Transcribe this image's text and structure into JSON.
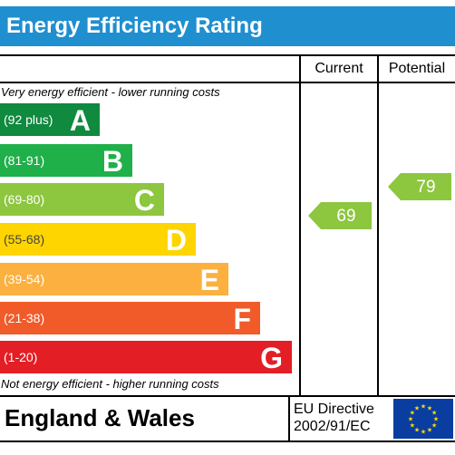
{
  "title": "Energy Efficiency Rating",
  "columns": {
    "current": "Current",
    "potential": "Potential"
  },
  "top_note": "Very energy efficient - lower running costs",
  "bottom_note": "Not energy efficient - higher running costs",
  "footer": {
    "country": "England & Wales",
    "directive_line1": "EU Directive",
    "directive_line2": "2002/91/EC",
    "flag_icon": "eu-flag-icon"
  },
  "chart_data": {
    "type": "bar",
    "categories": [
      "A",
      "B",
      "C",
      "D",
      "E",
      "F",
      "G"
    ],
    "bands": [
      {
        "letter": "A",
        "range": "(92 plus)",
        "min": 92,
        "max": 100,
        "color": "#0f8a3e"
      },
      {
        "letter": "B",
        "range": "(81-91)",
        "min": 81,
        "max": 91,
        "color": "#1fb04a"
      },
      {
        "letter": "C",
        "range": "(69-80)",
        "min": 69,
        "max": 80,
        "color": "#8dc63f"
      },
      {
        "letter": "D",
        "range": "(55-68)",
        "min": 55,
        "max": 68,
        "color": "#ffd500"
      },
      {
        "letter": "E",
        "range": "(39-54)",
        "min": 39,
        "max": 54,
        "color": "#fbb040"
      },
      {
        "letter": "F",
        "range": "(21-38)",
        "min": 21,
        "max": 38,
        "color": "#f15a29"
      },
      {
        "letter": "G",
        "range": "(1-20)",
        "min": 1,
        "max": 20,
        "color": "#e31e25"
      }
    ],
    "current": {
      "value": 69,
      "band": "C",
      "color": "#8dc63f"
    },
    "potential": {
      "value": 79,
      "band": "C",
      "color": "#8dc63f"
    }
  }
}
